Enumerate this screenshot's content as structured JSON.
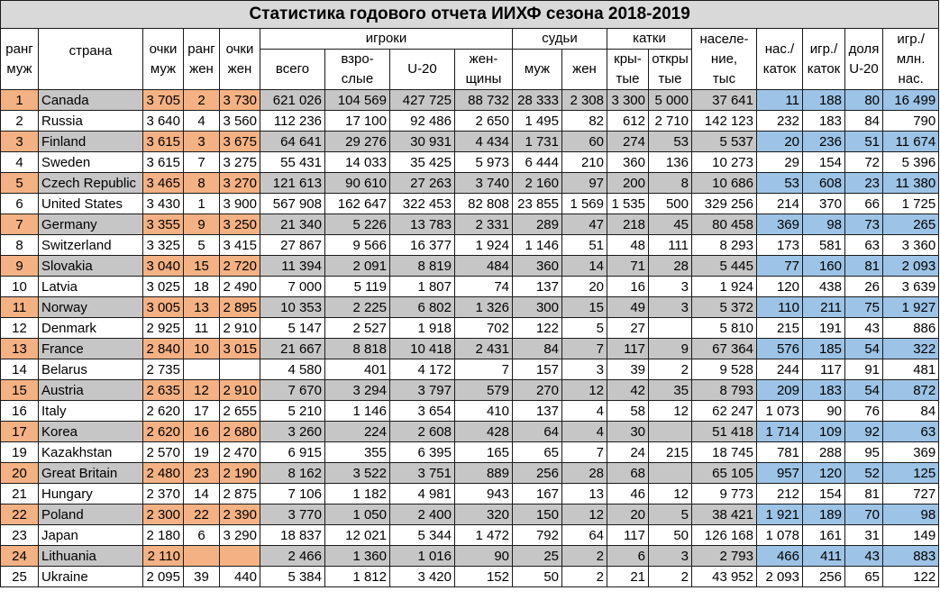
{
  "title": "Статистика годового отчета ИИХФ сезона 2018-2019",
  "headers": {
    "rank_m": [
      "ранг",
      "муж"
    ],
    "country": "страна",
    "pts_m": [
      "очки",
      "муж"
    ],
    "rank_w": [
      "ранг",
      "жен"
    ],
    "pts_w": [
      "очки",
      "жен"
    ],
    "players": "игроки",
    "referees": "судьи",
    "rinks": "катки",
    "population": [
      "населе-",
      "ние,",
      "тыс"
    ],
    "pop_per_rink": [
      "нас./",
      "каток"
    ],
    "players_per_rink": [
      "игр./",
      "каток"
    ],
    "u20_share": [
      "доля",
      "U-20"
    ],
    "players_per_million": [
      "игр./",
      "млн.",
      "нас."
    ],
    "players_total": "всего",
    "players_adult": [
      "взро-",
      "слые"
    ],
    "players_u20": "U-20",
    "players_women": [
      "жен-",
      "щины"
    ],
    "ref_m": "муж",
    "ref_w": "жен",
    "rinks_indoor": [
      "кры-",
      "тые"
    ],
    "rinks_outdoor": [
      "откры",
      "тые"
    ]
  },
  "rows": [
    [
      "1",
      "Canada",
      "3 705",
      "2",
      "3 730",
      "621 026",
      "104 569",
      "427 725",
      "88 732",
      "28 333",
      "2 308",
      "3 300",
      "5 000",
      "37 641",
      "11",
      "188",
      "80",
      "16 499"
    ],
    [
      "2",
      "Russia",
      "3 640",
      "4",
      "3 560",
      "112 236",
      "17 100",
      "92 486",
      "2 650",
      "1 495",
      "82",
      "612",
      "2 710",
      "142 123",
      "232",
      "183",
      "84",
      "790"
    ],
    [
      "3",
      "Finland",
      "3 615",
      "3",
      "3 675",
      "64 641",
      "29 276",
      "30 931",
      "4 434",
      "1 731",
      "60",
      "274",
      "53",
      "5 537",
      "20",
      "236",
      "51",
      "11 674"
    ],
    [
      "4",
      "Sweden",
      "3 615",
      "7",
      "3 275",
      "55 431",
      "14 033",
      "35 425",
      "5 973",
      "6 444",
      "210",
      "360",
      "136",
      "10 273",
      "29",
      "154",
      "72",
      "5 396"
    ],
    [
      "5",
      "Czech Republic",
      "3 465",
      "8",
      "3 270",
      "121 613",
      "90 610",
      "27 263",
      "3 740",
      "2 160",
      "97",
      "200",
      "8",
      "10 686",
      "53",
      "608",
      "23",
      "11 380"
    ],
    [
      "6",
      "United States",
      "3 430",
      "1",
      "3 900",
      "567 908",
      "162 647",
      "322 453",
      "82 808",
      "23 855",
      "1 569",
      "1 535",
      "500",
      "329 256",
      "214",
      "370",
      "66",
      "1 725"
    ],
    [
      "7",
      "Germany",
      "3 355",
      "9",
      "3 250",
      "21 340",
      "5 226",
      "13 783",
      "2 331",
      "289",
      "47",
      "218",
      "45",
      "80 458",
      "369",
      "98",
      "73",
      "265"
    ],
    [
      "8",
      "Switzerland",
      "3 325",
      "5",
      "3 415",
      "27 867",
      "9 566",
      "16 377",
      "1 924",
      "1 146",
      "51",
      "48",
      "111",
      "8 293",
      "173",
      "581",
      "63",
      "3 360"
    ],
    [
      "9",
      "Slovakia",
      "3 040",
      "15",
      "2 720",
      "11 394",
      "2 091",
      "8 819",
      "484",
      "360",
      "14",
      "71",
      "28",
      "5 445",
      "77",
      "160",
      "81",
      "2 093"
    ],
    [
      "10",
      "Latvia",
      "3 025",
      "18",
      "2 490",
      "7 000",
      "5 119",
      "1 807",
      "74",
      "137",
      "20",
      "16",
      "3",
      "1 924",
      "120",
      "438",
      "26",
      "3 639"
    ],
    [
      "11",
      "Norway",
      "3 005",
      "13",
      "2 895",
      "10 353",
      "2 225",
      "6 802",
      "1 326",
      "300",
      "15",
      "49",
      "3",
      "5 372",
      "110",
      "211",
      "75",
      "1 927"
    ],
    [
      "12",
      "Denmark",
      "2 925",
      "11",
      "2 910",
      "5 147",
      "2 527",
      "1 918",
      "702",
      "122",
      "5",
      "27",
      "",
      "5 810",
      "215",
      "191",
      "43",
      "886"
    ],
    [
      "13",
      "France",
      "2 840",
      "10",
      "3 015",
      "21 667",
      "8 818",
      "10 418",
      "2 431",
      "84",
      "7",
      "117",
      "9",
      "67 364",
      "576",
      "185",
      "54",
      "322"
    ],
    [
      "14",
      "Belarus",
      "2 735",
      "",
      "",
      "4 580",
      "401",
      "4 172",
      "7",
      "157",
      "3",
      "39",
      "2",
      "9 528",
      "244",
      "117",
      "91",
      "481"
    ],
    [
      "15",
      "Austria",
      "2 635",
      "12",
      "2 910",
      "7 670",
      "3 294",
      "3 797",
      "579",
      "270",
      "12",
      "42",
      "35",
      "8 793",
      "209",
      "183",
      "54",
      "872"
    ],
    [
      "16",
      "Italy",
      "2 620",
      "17",
      "2 655",
      "5 210",
      "1 146",
      "3 654",
      "410",
      "137",
      "4",
      "58",
      "12",
      "62 247",
      "1 073",
      "90",
      "76",
      "84"
    ],
    [
      "17",
      "Korea",
      "2 620",
      "16",
      "2 680",
      "3 260",
      "224",
      "2 608",
      "428",
      "64",
      "4",
      "30",
      "",
      "51 418",
      "1 714",
      "109",
      "92",
      "63"
    ],
    [
      "19",
      "Kazakhstan",
      "2 570",
      "19",
      "2 470",
      "6 915",
      "355",
      "6 395",
      "165",
      "65",
      "7",
      "24",
      "215",
      "18 745",
      "781",
      "288",
      "95",
      "369"
    ],
    [
      "20",
      "Great Britain",
      "2 480",
      "23",
      "2 190",
      "8 162",
      "3 522",
      "3 751",
      "889",
      "256",
      "28",
      "68",
      "",
      "65 105",
      "957",
      "120",
      "52",
      "125"
    ],
    [
      "21",
      "Hungary",
      "2 370",
      "14",
      "2 875",
      "7 106",
      "1 182",
      "4 981",
      "943",
      "167",
      "13",
      "46",
      "12",
      "9 773",
      "212",
      "154",
      "81",
      "727"
    ],
    [
      "22",
      "Poland",
      "2 300",
      "22",
      "2 390",
      "3 770",
      "1 050",
      "2 400",
      "320",
      "150",
      "12",
      "20",
      "5",
      "38 421",
      "1 921",
      "189",
      "70",
      "98"
    ],
    [
      "23",
      "Japan",
      "2 180",
      "6",
      "3 290",
      "18 837",
      "12 021",
      "5 344",
      "1 472",
      "792",
      "64",
      "117",
      "50",
      "126 168",
      "1 078",
      "161",
      "31",
      "149"
    ],
    [
      "24",
      "Lithuania",
      "2 110",
      "",
      "",
      "2 466",
      "1 360",
      "1 016",
      "90",
      "25",
      "2",
      "6",
      "3",
      "2 793",
      "466",
      "411",
      "43",
      "883"
    ],
    [
      "25",
      "Ukraine",
      "2 095",
      "39",
      "440",
      "5 384",
      "1 812",
      "3 420",
      "152",
      "50",
      "2",
      "21",
      "2",
      "43 952",
      "2 093",
      "256",
      "65",
      "122"
    ]
  ],
  "colors": {
    "grey_row": "#c6c6c6",
    "orange_cell": "#f4b183",
    "blue_cell": "#9dc3e6",
    "border": "#1a1a1a"
  }
}
